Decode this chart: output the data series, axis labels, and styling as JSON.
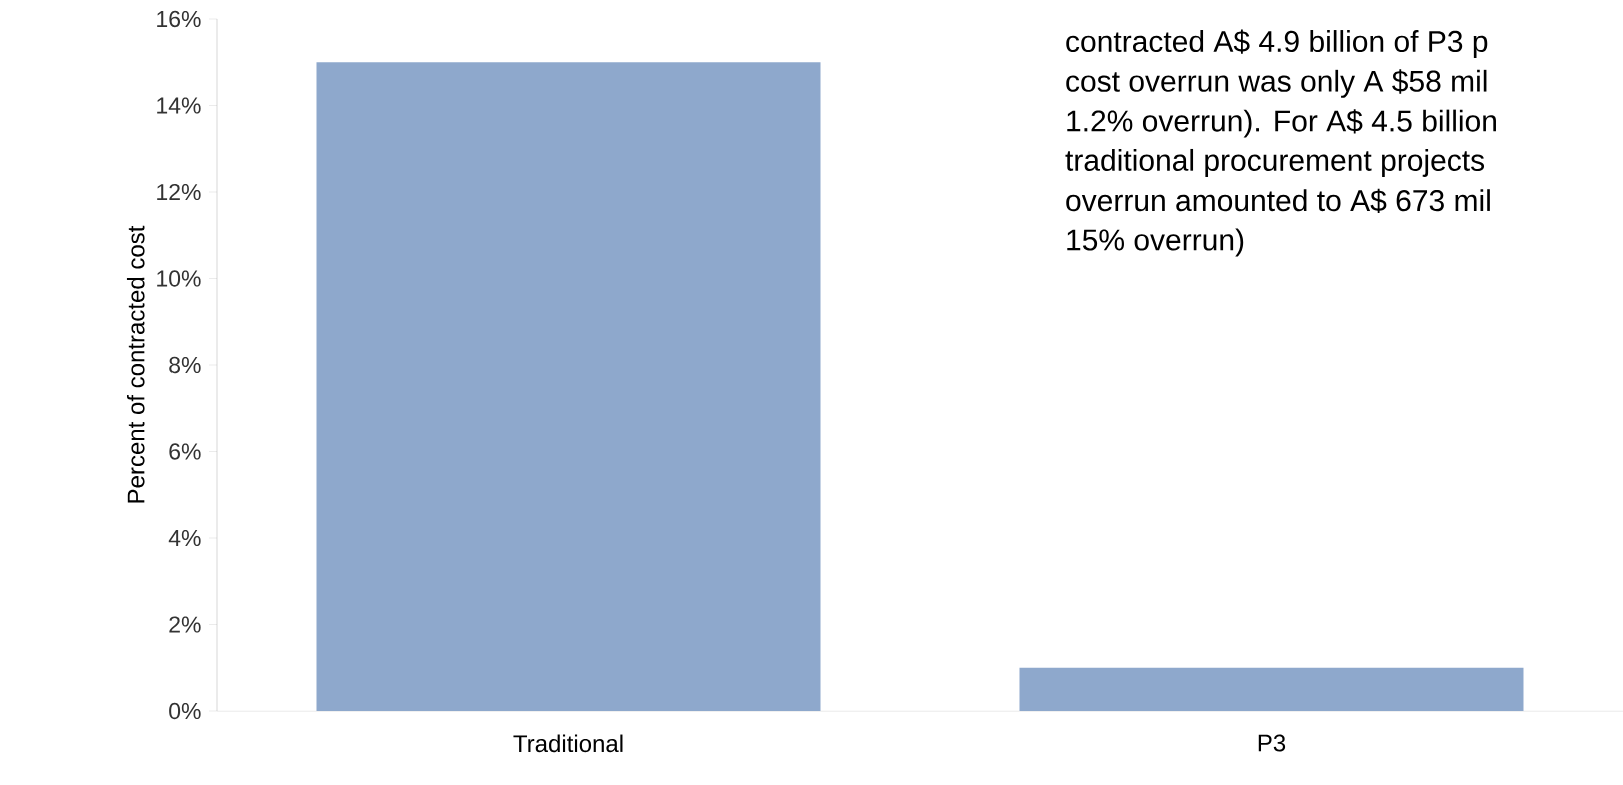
{
  "chart_data": {
    "type": "bar",
    "ylabel": "Percent of contracted cost",
    "categories": [
      "Traditional",
      "P3"
    ],
    "values": [
      15,
      1.0
    ],
    "color": "#8ea8cc",
    "ylim": [
      0,
      16
    ],
    "yticks": [
      {
        "value": 0,
        "label": "0%"
      },
      {
        "value": 2,
        "label": "2%"
      },
      {
        "value": 4,
        "label": "4%"
      },
      {
        "value": 6,
        "label": "6%"
      },
      {
        "value": 8,
        "label": "8%"
      },
      {
        "value": 10,
        "label": "10%"
      },
      {
        "value": 12,
        "label": "12%"
      },
      {
        "value": 14,
        "label": "14%"
      },
      {
        "value": 16,
        "label": "16%"
      }
    ],
    "annotations": [
      "contracted A$ 4.9 billion of P3 p",
      "cost overrun was only A $58 mil",
      "1.2% overrun). For A$ 4.5 billion",
      "traditional procurement projects",
      "overrun amounted to A$ 673 mil",
      "15% overrun)"
    ]
  }
}
